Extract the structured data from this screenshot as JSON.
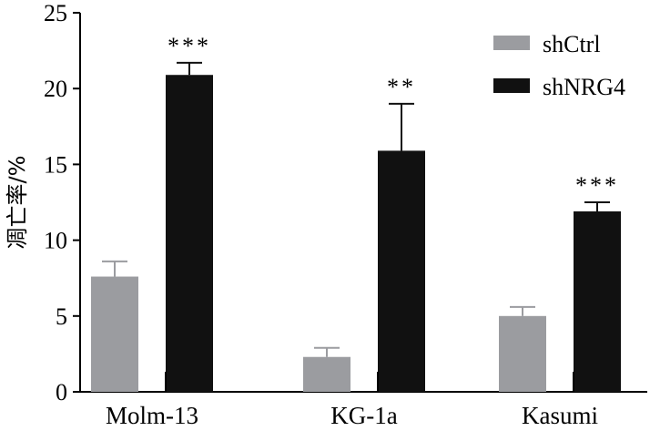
{
  "chart_data": {
    "type": "bar",
    "categories": [
      "Molm-13",
      "KG-1a",
      "Kasumi"
    ],
    "series": [
      {
        "name": "shCtrl",
        "color": "#9b9ca0",
        "values": [
          7.6,
          2.3,
          5.0
        ],
        "errors": [
          1.0,
          0.6,
          0.6
        ]
      },
      {
        "name": "shNRG4",
        "color": "#111111",
        "values": [
          20.9,
          15.9,
          11.9
        ],
        "errors": [
          0.8,
          3.1,
          0.6
        ]
      }
    ],
    "significance": [
      "***",
      "**",
      "***"
    ],
    "ylabel": "凋亡率/%",
    "xlabel": "",
    "ylim": [
      0,
      25
    ],
    "yticks": [
      "0",
      "5",
      "10",
      "15",
      "20",
      "25"
    ],
    "grid": false,
    "legend_position": "top-right"
  }
}
